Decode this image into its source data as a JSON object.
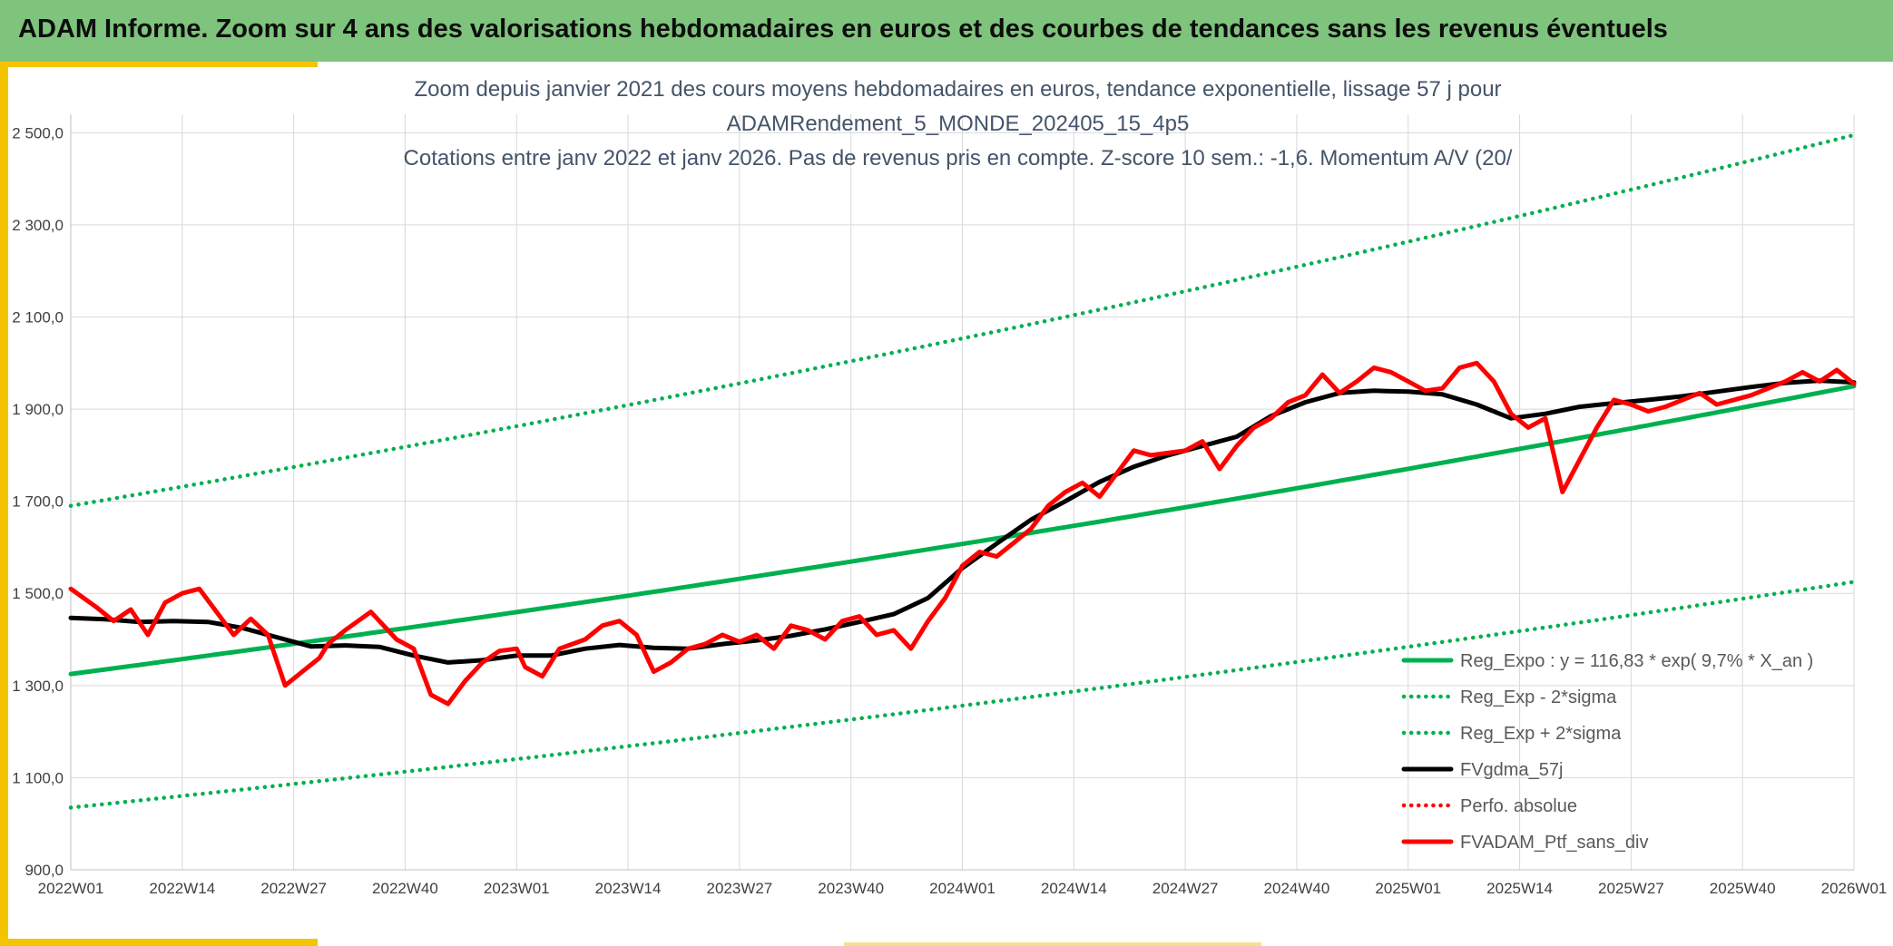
{
  "header": {
    "title": "ADAM Informe. Zoom sur 4 ans des valorisations hebdomadaires en euros et des courbes de tendances sans les revenus éventuels"
  },
  "colors": {
    "banner": "#7ec47c",
    "accent": "#f5c400",
    "reg": "#00b050",
    "ma": "#000000",
    "ptf": "#ff0000"
  },
  "chart_data": {
    "type": "line",
    "title_lines": [
      "Zoom depuis janvier 2021 des cours moyens hebdomadaires en euros, tendance exponentielle, lissage 57 j pour",
      "ADAMRendement_5_MONDE_202405_15_4p5",
      "Cotations entre janv 2022 et janv 2026. Pas de revenus pris en compte. Z-score 10 sem.: -1,6. Momentum A/V (20/"
    ],
    "x_tick_labels": [
      "2022W01",
      "2022W14",
      "2022W27",
      "2022W40",
      "2023W01",
      "2023W14",
      "2023W27",
      "2023W40",
      "2024W01",
      "2024W14",
      "2024W27",
      "2024W40",
      "2025W01",
      "2025W14",
      "2025W27",
      "2025W40",
      "2026W01"
    ],
    "y_tick_labels": [
      "900,0",
      "1 100,0",
      "1 300,0",
      "1 500,0",
      "1 700,0",
      "1 900,0",
      "2 100,0",
      "2 300,0",
      "2 500,0"
    ],
    "x_range_weeks": [
      0,
      208
    ],
    "ylim": [
      900,
      2540
    ],
    "y_ticks": [
      900,
      1100,
      1300,
      1500,
      1700,
      1900,
      2100,
      2300,
      2500
    ],
    "grid": true,
    "legend_position": "bottom-right",
    "series": [
      {
        "name": "Reg_Expo : y = 116,83 * exp( 9,7% *  X_an )",
        "style": "solid",
        "color": "#00b050",
        "x": [
          0,
          208
        ],
        "y": [
          1325,
          1950
        ],
        "curve": "exponential"
      },
      {
        "name": "Reg_Exp - 2*sigma",
        "style": "dotted",
        "color": "#00b050",
        "x": [
          0,
          208
        ],
        "y": [
          1035,
          1525
        ],
        "curve": "exponential"
      },
      {
        "name": "Reg_Exp + 2*sigma",
        "style": "dotted",
        "color": "#00b050",
        "x": [
          0,
          208
        ],
        "y": [
          1690,
          2495
        ],
        "curve": "exponential"
      },
      {
        "name": "FVgdma_57j",
        "style": "solid",
        "color": "#000000",
        "x": [
          0,
          4,
          8,
          12,
          16,
          20,
          24,
          28,
          32,
          36,
          40,
          44,
          48,
          52,
          56,
          60,
          64,
          68,
          72,
          76,
          80,
          84,
          88,
          92,
          96,
          100,
          104,
          108,
          112,
          116,
          120,
          124,
          128,
          132,
          136,
          140,
          144,
          148,
          152,
          156,
          160,
          164,
          168,
          172,
          176,
          180,
          184,
          188,
          192,
          196,
          200,
          204,
          208
        ],
        "y": [
          1447,
          1444,
          1438,
          1440,
          1438,
          1425,
          1405,
          1385,
          1387,
          1384,
          1365,
          1350,
          1355,
          1365,
          1365,
          1380,
          1388,
          1382,
          1380,
          1390,
          1398,
          1408,
          1422,
          1438,
          1455,
          1490,
          1555,
          1608,
          1660,
          1700,
          1742,
          1775,
          1800,
          1820,
          1840,
          1885,
          1915,
          1935,
          1940,
          1938,
          1932,
          1910,
          1880,
          1890,
          1905,
          1913,
          1920,
          1928,
          1938,
          1948,
          1957,
          1962,
          1958
        ]
      },
      {
        "name": "Perfo. absolue",
        "style": "dotted",
        "color": "#ff0000",
        "x": [],
        "y": []
      },
      {
        "name": "FVADAM_Ptf_sans_div",
        "style": "solid",
        "color": "#ff0000",
        "x": [
          0,
          3,
          5,
          7,
          9,
          11,
          13,
          15,
          17,
          19,
          21,
          23,
          25,
          27,
          29,
          30,
          32,
          35,
          38,
          40,
          42,
          44,
          46,
          48,
          50,
          52,
          53,
          55,
          57,
          60,
          62,
          64,
          66,
          68,
          70,
          72,
          74,
          76,
          78,
          80,
          82,
          84,
          86,
          88,
          90,
          92,
          94,
          96,
          98,
          100,
          102,
          104,
          106,
          108,
          110,
          112,
          114,
          116,
          118,
          120,
          122,
          124,
          126,
          128,
          130,
          132,
          134,
          136,
          138,
          140,
          142,
          144,
          146,
          148,
          150,
          152,
          154,
          156,
          158,
          160,
          162,
          164,
          166,
          168,
          170,
          172,
          174,
          176,
          178,
          180,
          182,
          184,
          186,
          188,
          190,
          192,
          194,
          196,
          198,
          200,
          202,
          204,
          206,
          208
        ],
        "y": [
          1510,
          1470,
          1440,
          1465,
          1410,
          1480,
          1500,
          1510,
          1460,
          1410,
          1445,
          1410,
          1300,
          1330,
          1360,
          1390,
          1420,
          1460,
          1400,
          1380,
          1280,
          1260,
          1310,
          1350,
          1375,
          1380,
          1340,
          1320,
          1380,
          1400,
          1430,
          1440,
          1410,
          1330,
          1350,
          1380,
          1390,
          1410,
          1395,
          1410,
          1380,
          1430,
          1420,
          1400,
          1440,
          1450,
          1410,
          1420,
          1380,
          1440,
          1490,
          1560,
          1590,
          1580,
          1610,
          1640,
          1690,
          1720,
          1740,
          1710,
          1760,
          1810,
          1800,
          1805,
          1810,
          1830,
          1770,
          1820,
          1860,
          1880,
          1915,
          1930,
          1975,
          1935,
          1960,
          1990,
          1980,
          1960,
          1940,
          1945,
          1990,
          2000,
          1960,
          1890,
          1860,
          1880,
          1720,
          1790,
          1860,
          1920,
          1910,
          1895,
          1905,
          1920,
          1935,
          1910,
          1920,
          1930,
          1945,
          1960,
          1980,
          1960,
          1985,
          1955
        ]
      }
    ]
  }
}
